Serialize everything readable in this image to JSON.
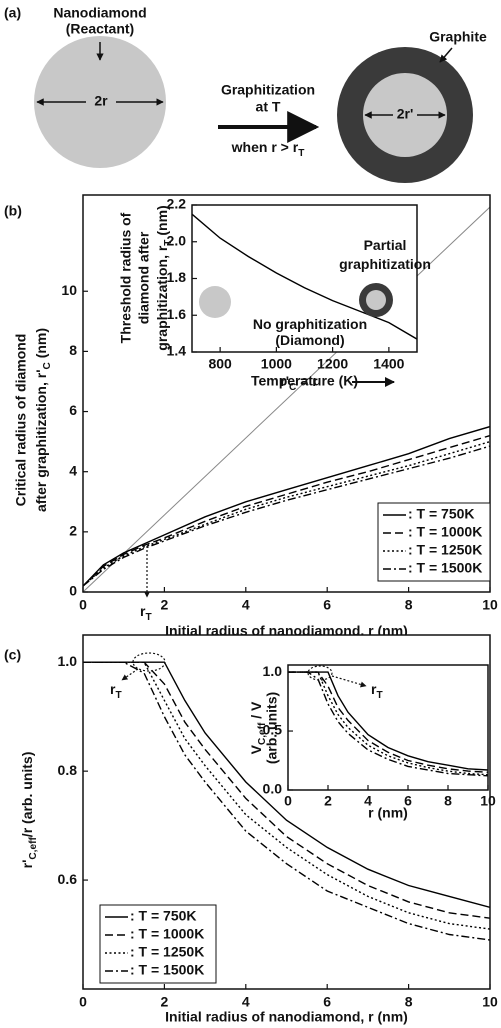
{
  "panels": [
    "(a)",
    "(b)",
    "(c)"
  ],
  "diagram": {
    "reactant_label": [
      "Nanodiamond",
      "(Reactant)"
    ],
    "reactant_size": "2r",
    "process": [
      "Graphitization",
      "at T"
    ],
    "condition": [
      "when r > r",
      "T"
    ],
    "product_label": "Graphite",
    "product_size": "2r'"
  },
  "chart_data": [
    {
      "type": "line",
      "x_label": "Initial radius of nanodiamond, r (nm)",
      "y_label": [
        "Critical radius of diamond",
        [
          "after graphitization, r'",
          "C",
          " (nm)"
        ]
      ],
      "xlim": [
        0,
        10
      ],
      "ylim": [
        0,
        13.2
      ],
      "xticks": [
        0,
        2,
        4,
        6,
        8,
        10
      ],
      "yticks": [
        0,
        2,
        4,
        6,
        8,
        10
      ],
      "x": [
        0,
        0.5,
        1,
        1.5,
        2,
        3,
        4,
        5,
        6,
        7,
        8,
        9,
        10
      ],
      "series": [
        {
          "name": ": T = 750K",
          "color": "#000000",
          "dash": "solid",
          "values": [
            0.2,
            0.9,
            1.3,
            1.6,
            1.9,
            2.5,
            3.0,
            3.4,
            3.8,
            4.2,
            4.6,
            5.1,
            5.5
          ]
        },
        {
          "name": ": T = 1000K",
          "color": "#000000",
          "dash": "dashed",
          "values": [
            0.2,
            0.85,
            1.25,
            1.55,
            1.8,
            2.35,
            2.85,
            3.25,
            3.65,
            4.0,
            4.4,
            4.8,
            5.2
          ]
        },
        {
          "name": ": T = 1250K",
          "color": "#000000",
          "dash": "dotted",
          "values": [
            0.2,
            0.8,
            1.2,
            1.5,
            1.75,
            2.25,
            2.75,
            3.15,
            3.5,
            3.85,
            4.2,
            4.6,
            5.0
          ]
        },
        {
          "name": ": T = 1500K",
          "color": "#000000",
          "dash": "dashdot",
          "values": [
            0.2,
            0.75,
            1.15,
            1.45,
            1.7,
            2.2,
            2.65,
            3.05,
            3.4,
            3.75,
            4.1,
            4.45,
            4.85
          ]
        }
      ],
      "reference_line": {
        "x": [
          0,
          10
        ],
        "values": [
          0,
          12.8
        ],
        "color": "#888888"
      },
      "annotations": [
        [
          "r'",
          "C",
          " = r"
        ],
        [
          "r",
          "T"
        ]
      ],
      "legend": "lower right"
    },
    {
      "type": "line",
      "x_label": "Temperature (K)",
      "y_label": [
        "Threshold radius of",
        "diamond after",
        [
          "graphitization, r",
          "T",
          " (nm)"
        ]
      ],
      "xlim": [
        700,
        1500
      ],
      "ylim": [
        1.4,
        2.2
      ],
      "xticks": [
        800,
        1000,
        1200,
        1400
      ],
      "yticks": [
        1.4,
        1.6,
        1.8,
        {
          "value": 2,
          "label": "2.0"
        },
        2.2
      ],
      "x": [
        700,
        800,
        900,
        1000,
        1100,
        1200,
        1300,
        1400,
        1500
      ],
      "series": [
        {
          "color": "#000000",
          "dash": "solid",
          "values": [
            2.15,
            2.02,
            1.92,
            1.83,
            1.75,
            1.68,
            1.62,
            1.56,
            1.47
          ]
        }
      ],
      "annotations": [
        [
          "Partial"
        ],
        [
          "graphitization"
        ],
        [
          "No graphitization"
        ],
        [
          "(Diamond)"
        ]
      ]
    },
    {
      "type": "line",
      "x_label": "Initial radius of nanodiamond, r (nm)",
      "y_label": [
        [
          "r'",
          "C,eff",
          "/r (arb. units)"
        ]
      ],
      "xlim": [
        0,
        10
      ],
      "ylim": [
        0.4,
        1.05
      ],
      "xticks": [
        0,
        2,
        4,
        6,
        8,
        10
      ],
      "yticks": [
        0.6,
        0.8,
        {
          "value": 1,
          "label": "1.0"
        }
      ],
      "x": [
        0,
        1,
        1.5,
        2,
        2.5,
        3,
        4,
        5,
        6,
        7,
        8,
        9,
        10
      ],
      "series": [
        {
          "name": ": T = 750K",
          "color": "#000000",
          "dash": "solid",
          "values": [
            1,
            1,
            1,
            1,
            0.93,
            0.87,
            0.78,
            0.71,
            0.66,
            0.62,
            0.59,
            0.57,
            0.55
          ]
        },
        {
          "name": ": T = 1000K",
          "color": "#000000",
          "dash": "dashed",
          "values": [
            1,
            1,
            1,
            0.96,
            0.89,
            0.84,
            0.75,
            0.68,
            0.63,
            0.59,
            0.56,
            0.54,
            0.53
          ]
        },
        {
          "name": ": T = 1250K",
          "color": "#000000",
          "dash": "dotted",
          "values": [
            1,
            1,
            1,
            0.93,
            0.86,
            0.81,
            0.72,
            0.66,
            0.61,
            0.57,
            0.54,
            0.52,
            0.51
          ]
        },
        {
          "name": ": T = 1500K",
          "color": "#000000",
          "dash": "dashdot",
          "values": [
            1,
            1,
            0.98,
            0.9,
            0.83,
            0.78,
            0.69,
            0.63,
            0.58,
            0.55,
            0.52,
            0.5,
            0.49
          ]
        }
      ],
      "annotations": [
        [
          "r",
          "T"
        ]
      ],
      "legend": "lower left"
    },
    {
      "type": "line",
      "x_label": "r (nm)",
      "y_label": [
        [
          "V",
          "C,eff",
          " / V"
        ],
        "(arb. units)"
      ],
      "xlim": [
        0,
        10
      ],
      "ylim": [
        0,
        1.06
      ],
      "xticks": [
        0,
        2,
        4,
        6,
        8,
        10
      ],
      "yticks": [
        {
          "value": 0,
          "label": "0.0"
        },
        0.5,
        {
          "value": 1,
          "label": "1.0"
        }
      ],
      "x": [
        0,
        1,
        1.5,
        2,
        2.5,
        3,
        4,
        5,
        6,
        7,
        8,
        9,
        10
      ],
      "series": [
        {
          "color": "#000000",
          "dash": "solid",
          "values": [
            1,
            1,
            1,
            1,
            0.8,
            0.66,
            0.47,
            0.36,
            0.29,
            0.24,
            0.21,
            0.18,
            0.17
          ]
        },
        {
          "color": "#000000",
          "dash": "dashed",
          "values": [
            1,
            1,
            1,
            0.88,
            0.7,
            0.59,
            0.42,
            0.32,
            0.25,
            0.21,
            0.18,
            0.16,
            0.15
          ]
        },
        {
          "color": "#000000",
          "dash": "dotted",
          "values": [
            1,
            1,
            1,
            0.8,
            0.64,
            0.53,
            0.38,
            0.29,
            0.23,
            0.19,
            0.16,
            0.14,
            0.13
          ]
        },
        {
          "color": "#000000",
          "dash": "dashdot",
          "values": [
            1,
            1,
            0.94,
            0.73,
            0.58,
            0.48,
            0.34,
            0.26,
            0.2,
            0.17,
            0.14,
            0.13,
            0.12
          ]
        }
      ],
      "annotations": [
        [
          "r",
          "T"
        ]
      ]
    }
  ]
}
